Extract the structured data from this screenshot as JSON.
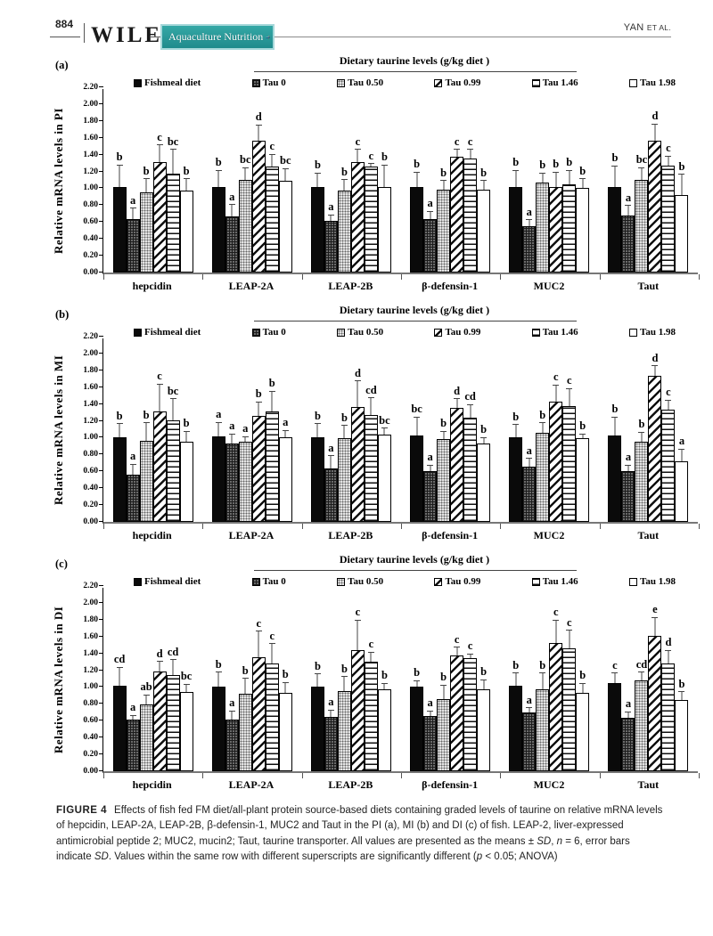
{
  "header": {
    "page_number": "884",
    "publisher": "WILEY",
    "journal": "Aquaculture Nutrition",
    "running_head_author": "YAN",
    "running_head_suffix": "ET AL."
  },
  "colors": {
    "badge_teal": "#2a9b9b",
    "badge_border": "#a7d8da",
    "axis_gray": "#777777",
    "bar_black": "#0a0a0a"
  },
  "legend_patterns": [
    "solid",
    "griddark",
    "stipple",
    "diag",
    "hlines",
    "open"
  ],
  "chart_data": [
    {
      "panel": "(a)",
      "type": "bar",
      "title": "Dietary taurine levels (g/kg diet )",
      "ylabel": "Relative mRNA levels in PI",
      "ylim": [
        0,
        2.2
      ],
      "ytick_step": 0.2,
      "grid": false,
      "legend_position": "top",
      "categories": [
        "hepcidin",
        "LEAP-2A",
        "LEAP-2B",
        "β-defensin-1",
        "MUC2",
        "Taut"
      ],
      "series": [
        {
          "name": "Fishmeal diet",
          "pattern": "solid",
          "values": [
            1.02,
            1.02,
            1.02,
            1.02,
            1.02,
            1.02
          ],
          "errors": [
            0.26,
            0.2,
            0.17,
            0.18,
            0.2,
            0.25
          ],
          "letters": [
            "b",
            "b",
            "b",
            "b",
            "b",
            "b"
          ]
        },
        {
          "name": "Tau 0",
          "pattern": "griddark",
          "values": [
            0.64,
            0.67,
            0.61,
            0.63,
            0.55,
            0.68
          ],
          "errors": [
            0.13,
            0.14,
            0.08,
            0.1,
            0.08,
            0.12
          ],
          "letters": [
            "a",
            "a",
            "a",
            "a",
            "a",
            "a"
          ]
        },
        {
          "name": "Tau 0.50",
          "pattern": "stipple",
          "values": [
            0.95,
            1.1,
            0.97,
            0.98,
            1.07,
            1.1
          ],
          "errors": [
            0.17,
            0.15,
            0.14,
            0.12,
            0.12,
            0.15
          ],
          "letters": [
            "b",
            "bc",
            "b",
            "b",
            "b",
            "bc"
          ]
        },
        {
          "name": "Tau 0.99",
          "pattern": "diag",
          "values": [
            1.31,
            1.57,
            1.31,
            1.37,
            1.02,
            1.57
          ],
          "errors": [
            0.21,
            0.19,
            0.16,
            0.1,
            0.18,
            0.2
          ],
          "letters": [
            "c",
            "d",
            "c",
            "c",
            "b",
            "d"
          ]
        },
        {
          "name": "Tau 1.46",
          "pattern": "hlines",
          "values": [
            1.17,
            1.26,
            1.26,
            1.35,
            1.05,
            1.27
          ],
          "errors": [
            0.3,
            0.15,
            0.04,
            0.12,
            0.17,
            0.12
          ],
          "letters": [
            "bc",
            "c",
            "c",
            "c",
            "b",
            "c"
          ]
        },
        {
          "name": "Tau 1.98",
          "pattern": "open",
          "values": [
            0.97,
            1.09,
            1.02,
            0.98,
            1.0,
            0.92
          ],
          "errors": [
            0.15,
            0.15,
            0.26,
            0.12,
            0.12,
            0.25
          ],
          "letters": [
            "b",
            "bc",
            "b",
            "b",
            "b",
            "b"
          ]
        }
      ]
    },
    {
      "panel": "(b)",
      "type": "bar",
      "title": "Dietary taurine levels (g/kg diet )",
      "ylabel": "Relative mRNA levels in MI",
      "ylim": [
        0,
        2.2
      ],
      "ytick_step": 0.2,
      "grid": false,
      "legend_position": "top",
      "categories": [
        "hepcidin",
        "LEAP-2A",
        "LEAP-2B",
        "β-defensin-1",
        "MUC2",
        "Taut"
      ],
      "series": [
        {
          "name": "Fishmeal diet",
          "pattern": "solid",
          "values": [
            1.01,
            1.02,
            1.01,
            1.03,
            1.01,
            1.03
          ],
          "errors": [
            0.16,
            0.17,
            0.16,
            0.22,
            0.15,
            0.22
          ],
          "letters": [
            "b",
            "a",
            "b",
            "bc",
            "b",
            "b"
          ]
        },
        {
          "name": "Tau 0",
          "pattern": "griddark",
          "values": [
            0.56,
            0.93,
            0.63,
            0.6,
            0.66,
            0.6
          ],
          "errors": [
            0.13,
            0.12,
            0.16,
            0.08,
            0.1,
            0.08
          ],
          "letters": [
            "a",
            "a",
            "a",
            "a",
            "a",
            "a"
          ]
        },
        {
          "name": "Tau 0.50",
          "pattern": "stipple",
          "values": [
            0.96,
            0.95,
            0.99,
            0.98,
            1.06,
            0.95
          ],
          "errors": [
            0.22,
            0.07,
            0.16,
            0.1,
            0.12,
            0.12
          ],
          "letters": [
            "b",
            "a",
            "b",
            "b",
            "b",
            "b"
          ]
        },
        {
          "name": "Tau 0.99",
          "pattern": "diag",
          "values": [
            1.31,
            1.26,
            1.36,
            1.35,
            1.43,
            1.74
          ],
          "errors": [
            0.33,
            0.17,
            0.32,
            0.12,
            0.2,
            0.12
          ],
          "letters": [
            "c",
            "b",
            "d",
            "d",
            "c",
            "d"
          ]
        },
        {
          "name": "Tau 1.46",
          "pattern": "hlines",
          "values": [
            1.21,
            1.31,
            1.27,
            1.24,
            1.37,
            1.33
          ],
          "errors": [
            0.26,
            0.25,
            0.21,
            0.16,
            0.22,
            0.12
          ],
          "letters": [
            "bc",
            "b",
            "cd",
            "cd",
            "c",
            "c"
          ]
        },
        {
          "name": "Tau 1.98",
          "pattern": "open",
          "values": [
            0.95,
            1.01,
            1.04,
            0.93,
            0.99,
            0.72
          ],
          "errors": [
            0.13,
            0.08,
            0.08,
            0.08,
            0.06,
            0.15
          ],
          "letters": [
            "b",
            "a",
            "bc",
            "b",
            "b",
            "a"
          ]
        }
      ]
    },
    {
      "panel": "(c)",
      "type": "bar",
      "title": "Dietary taurine levels (g/kg diet )",
      "ylabel": "Relative mRNA levels in  DI",
      "ylim": [
        0,
        2.2
      ],
      "ytick_step": 0.2,
      "grid": false,
      "legend_position": "top",
      "categories": [
        "hepcidin",
        "LEAP-2A",
        "LEAP-2B",
        "β-defensin-1",
        "MUC2",
        "Taut"
      ],
      "series": [
        {
          "name": "Fishmeal diet",
          "pattern": "solid",
          "values": [
            1.02,
            1.01,
            1.01,
            1.0,
            1.02,
            1.05
          ],
          "errors": [
            0.22,
            0.17,
            0.15,
            0.08,
            0.15,
            0.12
          ],
          "letters": [
            "cd",
            "b",
            "b",
            "b",
            "b",
            "c"
          ]
        },
        {
          "name": "Tau 0",
          "pattern": "griddark",
          "values": [
            0.61,
            0.61,
            0.65,
            0.66,
            0.7,
            0.63
          ],
          "errors": [
            0.06,
            0.11,
            0.08,
            0.06,
            0.06,
            0.08
          ],
          "letters": [
            "a",
            "a",
            "a",
            "a",
            "a",
            "a"
          ]
        },
        {
          "name": "Tau 0.50",
          "pattern": "stipple",
          "values": [
            0.79,
            0.92,
            0.95,
            0.86,
            0.97,
            1.08
          ],
          "errors": [
            0.12,
            0.19,
            0.18,
            0.17,
            0.2,
            0.1
          ],
          "letters": [
            "ab",
            "b",
            "b",
            "b",
            "b",
            "cd"
          ]
        },
        {
          "name": "Tau 0.99",
          "pattern": "diag",
          "values": [
            1.19,
            1.35,
            1.44,
            1.38,
            1.52,
            1.61
          ],
          "errors": [
            0.12,
            0.32,
            0.36,
            0.1,
            0.28,
            0.22
          ],
          "letters": [
            "d",
            "c",
            "c",
            "c",
            "c",
            "e"
          ]
        },
        {
          "name": "Tau 1.46",
          "pattern": "hlines",
          "values": [
            1.14,
            1.28,
            1.3,
            1.34,
            1.46,
            1.28
          ],
          "errors": [
            0.19,
            0.24,
            0.12,
            0.06,
            0.22,
            0.16
          ],
          "letters": [
            "cd",
            "c",
            "c",
            "c",
            "c",
            "d"
          ]
        },
        {
          "name": "Tau 1.98",
          "pattern": "open",
          "values": [
            0.94,
            0.93,
            0.97,
            0.97,
            0.93,
            0.85
          ],
          "errors": [
            0.1,
            0.13,
            0.08,
            0.12,
            0.12,
            0.1
          ],
          "letters": [
            "bc",
            "b",
            "b",
            "b",
            "b",
            "b"
          ]
        }
      ]
    }
  ],
  "caption": {
    "label": "FIGURE 4",
    "segments": [
      {
        "t": "Effects of fish fed FM diet/all-plant protein source-based diets containing graded levels of taurine on relative mRNA levels of hepcidin, LEAP-2A, LEAP-2B, β-defensin-1, MUC2 and Taut in the PI (a), MI (b) and DI (c) of fish. LEAP-2, liver-expressed antimicrobial peptide 2; MUC2, mucin2; Taut, taurine transporter. All values are presented as the means ± ",
        "i": false
      },
      {
        "t": "SD",
        "i": true
      },
      {
        "t": ", ",
        "i": false
      },
      {
        "t": "n",
        "i": true
      },
      {
        "t": " = 6, error bars indicate ",
        "i": false
      },
      {
        "t": "SD",
        "i": true
      },
      {
        "t": ". Values within the same row with different superscripts are significantly different (",
        "i": false
      },
      {
        "t": "p",
        "i": true
      },
      {
        "t": " < 0.05; ANOVA)",
        "i": false
      }
    ]
  }
}
